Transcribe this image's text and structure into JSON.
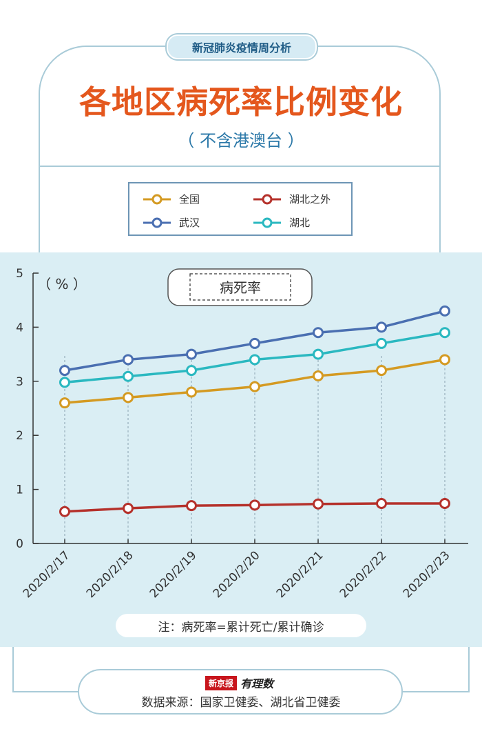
{
  "header": {
    "tag": "新冠肺炎疫情周分析",
    "title": "各地区病死率比例变化",
    "subtitle": "（ 不含港澳台 ）"
  },
  "chart_data": {
    "type": "line",
    "unit_label": "（ % ）",
    "chart_label": "病死率",
    "x": [
      "2020/2/17",
      "2020/2/18",
      "2020/2/19",
      "2020/2/20",
      "2020/2/21",
      "2020/2/22",
      "2020/2/23"
    ],
    "ylim": [
      0,
      5
    ],
    "yticks": [
      0,
      1,
      2,
      3,
      4,
      5
    ],
    "series": [
      {
        "name": "全国",
        "color": "#d49a22",
        "values": [
          2.6,
          2.7,
          2.8,
          2.9,
          3.1,
          3.2,
          3.4
        ]
      },
      {
        "name": "湖北之外",
        "color": "#b5312b",
        "values": [
          0.59,
          0.65,
          0.7,
          0.71,
          0.73,
          0.74,
          0.74
        ]
      },
      {
        "name": "武汉",
        "color": "#4a6fb1",
        "values": [
          3.2,
          3.4,
          3.5,
          3.7,
          3.9,
          4.0,
          4.3
        ]
      },
      {
        "name": "湖北",
        "color": "#2ab8c0",
        "values": [
          2.98,
          3.09,
          3.2,
          3.4,
          3.5,
          3.7,
          3.9
        ]
      }
    ]
  },
  "footer": {
    "note": "注：病死率=累计死亡/累计确诊",
    "brand_red": "新京报",
    "brand_ink": "有理数",
    "source": "数据来源：国家卫健委、湖北省卫健委"
  }
}
